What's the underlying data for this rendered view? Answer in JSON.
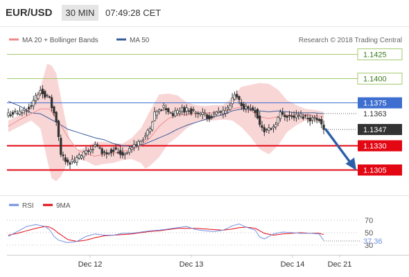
{
  "header": {
    "symbol": "EUR/USD",
    "timeframe": "30 MIN",
    "time": "07:49:28 CET"
  },
  "legend": {
    "ma20_bb": "MA 20 + Bollinger Bands",
    "ma50": "MA 50",
    "credit": "Research © 2018 Trading Central"
  },
  "colors": {
    "bb_fill": "#f9d6d6",
    "ma20": "#f08a8a",
    "ma50": "#3a5d9a",
    "candle": "#333333",
    "resistance": "#a4c96e",
    "pivot": "#3e6fd0",
    "support": "#e30613",
    "current_label": "#333333",
    "arrow": "#2d5fa8",
    "rsi": "#6f8fe0",
    "rsi_ma": "#e30613"
  },
  "price_labels": {
    "last_price": "1.1363",
    "current_price": "1.1347"
  },
  "chart_data": [
    {
      "type": "candlestick",
      "ylim": [
        1.1285,
        1.1445
      ],
      "x_labels": [
        "Dec 12",
        "Dec 13",
        "Dec 14",
        "Dec 21"
      ],
      "levels": [
        {
          "label": "1.1425",
          "value": 1.1425,
          "kind": "resistance"
        },
        {
          "label": "1.1400",
          "value": 1.14,
          "kind": "resistance"
        },
        {
          "label": "1.1375",
          "value": 1.1375,
          "kind": "pivot"
        },
        {
          "label": "1.1330",
          "value": 1.133,
          "kind": "support"
        },
        {
          "label": "1.1305",
          "value": 1.1305,
          "kind": "support"
        }
      ],
      "close_anchors": [
        [
          0,
          1.1363
        ],
        [
          5,
          1.1364
        ],
        [
          10,
          1.1372
        ],
        [
          14,
          1.1388
        ],
        [
          18,
          1.1378
        ],
        [
          21,
          1.1355
        ],
        [
          23,
          1.132
        ],
        [
          27,
          1.1312
        ],
        [
          30,
          1.1316
        ],
        [
          34,
          1.1323
        ],
        [
          38,
          1.133
        ],
        [
          42,
          1.1322
        ],
        [
          46,
          1.1326
        ],
        [
          50,
          1.1321
        ],
        [
          54,
          1.1328
        ],
        [
          58,
          1.1335
        ],
        [
          62,
          1.1346
        ],
        [
          64,
          1.1362
        ],
        [
          68,
          1.137
        ],
        [
          72,
          1.1362
        ],
        [
          76,
          1.1368
        ],
        [
          80,
          1.1366
        ],
        [
          84,
          1.1363
        ],
        [
          88,
          1.136
        ],
        [
          92,
          1.1364
        ],
        [
          96,
          1.1367
        ],
        [
          99,
          1.1382
        ],
        [
          103,
          1.137
        ],
        [
          108,
          1.1367
        ],
        [
          110,
          1.1352
        ],
        [
          112,
          1.1345
        ],
        [
          116,
          1.135
        ],
        [
          119,
          1.1363
        ],
        [
          124,
          1.136
        ],
        [
          128,
          1.1361
        ],
        [
          132,
          1.1358
        ],
        [
          136,
          1.1358
        ],
        [
          138,
          1.1347
        ]
      ],
      "bb_upper_anchors": [
        [
          0,
          1.1356
        ],
        [
          5,
          1.1362
        ],
        [
          10,
          1.1371
        ],
        [
          14,
          1.139
        ],
        [
          17,
          1.1415
        ],
        [
          19,
          1.1413
        ],
        [
          21,
          1.1405
        ],
        [
          23,
          1.138
        ],
        [
          27,
          1.1334
        ],
        [
          30,
          1.1325
        ],
        [
          34,
          1.1328
        ],
        [
          38,
          1.1334
        ],
        [
          42,
          1.1334
        ],
        [
          46,
          1.1332
        ],
        [
          50,
          1.1332
        ],
        [
          54,
          1.1338
        ],
        [
          58,
          1.1348
        ],
        [
          62,
          1.1366
        ],
        [
          66,
          1.1383
        ],
        [
          70,
          1.1384
        ],
        [
          74,
          1.1382
        ],
        [
          78,
          1.1375
        ],
        [
          82,
          1.1372
        ],
        [
          86,
          1.1371
        ],
        [
          90,
          1.1372
        ],
        [
          94,
          1.1372
        ],
        [
          98,
          1.138
        ],
        [
          102,
          1.1391
        ],
        [
          106,
          1.1393
        ],
        [
          110,
          1.1395
        ],
        [
          114,
          1.1394
        ],
        [
          118,
          1.1388
        ],
        [
          122,
          1.1377
        ],
        [
          126,
          1.1372
        ],
        [
          130,
          1.1368
        ],
        [
          134,
          1.1367
        ],
        [
          138,
          1.1365
        ]
      ],
      "ma20_anchors": [
        [
          0,
          1.135
        ],
        [
          5,
          1.1357
        ],
        [
          10,
          1.1363
        ],
        [
          14,
          1.1368
        ],
        [
          18,
          1.1368
        ],
        [
          22,
          1.1355
        ],
        [
          26,
          1.1339
        ],
        [
          30,
          1.1326
        ],
        [
          34,
          1.1321
        ],
        [
          38,
          1.1319
        ],
        [
          42,
          1.1321
        ],
        [
          46,
          1.1322
        ],
        [
          50,
          1.1324
        ],
        [
          54,
          1.1326
        ],
        [
          58,
          1.133
        ],
        [
          62,
          1.1338
        ],
        [
          66,
          1.135
        ],
        [
          70,
          1.1358
        ],
        [
          74,
          1.1362
        ],
        [
          78,
          1.1362
        ],
        [
          82,
          1.1363
        ],
        [
          86,
          1.1364
        ],
        [
          90,
          1.1364
        ],
        [
          94,
          1.1365
        ],
        [
          98,
          1.1368
        ],
        [
          102,
          1.137
        ],
        [
          106,
          1.1366
        ],
        [
          110,
          1.136
        ],
        [
          114,
          1.1358
        ],
        [
          118,
          1.136
        ],
        [
          122,
          1.1361
        ],
        [
          126,
          1.1362
        ],
        [
          130,
          1.1362
        ],
        [
          134,
          1.1361
        ],
        [
          138,
          1.136
        ]
      ],
      "bb_lower_anchors": [
        [
          0,
          1.1344
        ],
        [
          5,
          1.135
        ],
        [
          10,
          1.1356
        ],
        [
          14,
          1.1348
        ],
        [
          17,
          1.1315
        ],
        [
          19,
          1.1296
        ],
        [
          21,
          1.1293
        ],
        [
          23,
          1.1298
        ],
        [
          26,
          1.1312
        ],
        [
          30,
          1.1316
        ],
        [
          34,
          1.1314
        ],
        [
          38,
          1.1309
        ],
        [
          42,
          1.1311
        ],
        [
          46,
          1.1312
        ],
        [
          50,
          1.1315
        ],
        [
          54,
          1.1316
        ],
        [
          58,
          1.1312
        ],
        [
          60,
          1.1306
        ],
        [
          62,
          1.1309
        ],
        [
          66,
          1.1318
        ],
        [
          70,
          1.1332
        ],
        [
          74,
          1.1339
        ],
        [
          78,
          1.1348
        ],
        [
          82,
          1.1354
        ],
        [
          86,
          1.1356
        ],
        [
          90,
          1.1356
        ],
        [
          94,
          1.1357
        ],
        [
          98,
          1.1356
        ],
        [
          102,
          1.1349
        ],
        [
          106,
          1.1339
        ],
        [
          110,
          1.1326
        ],
        [
          114,
          1.1321
        ],
        [
          118,
          1.133
        ],
        [
          122,
          1.1344
        ],
        [
          126,
          1.1351
        ],
        [
          130,
          1.1356
        ],
        [
          134,
          1.1355
        ],
        [
          138,
          1.1354
        ]
      ],
      "ma50_anchors": [
        [
          0,
          1.1376
        ],
        [
          5,
          1.1371
        ],
        [
          10,
          1.1364
        ],
        [
          14,
          1.1363
        ],
        [
          18,
          1.1358
        ],
        [
          22,
          1.1353
        ],
        [
          26,
          1.1347
        ],
        [
          30,
          1.1344
        ],
        [
          34,
          1.1341
        ],
        [
          38,
          1.1338
        ],
        [
          42,
          1.1336
        ],
        [
          46,
          1.1332
        ],
        [
          50,
          1.133
        ],
        [
          54,
          1.1329
        ],
        [
          58,
          1.133
        ],
        [
          62,
          1.1334
        ],
        [
          66,
          1.1338
        ],
        [
          70,
          1.1342
        ],
        [
          74,
          1.1347
        ],
        [
          78,
          1.1351
        ],
        [
          82,
          1.1354
        ],
        [
          86,
          1.1357
        ],
        [
          90,
          1.136
        ],
        [
          94,
          1.1362
        ],
        [
          98,
          1.1366
        ],
        [
          102,
          1.1368
        ],
        [
          106,
          1.1367
        ],
        [
          110,
          1.1366
        ],
        [
          114,
          1.1365
        ],
        [
          118,
          1.1366
        ],
        [
          122,
          1.1365
        ],
        [
          126,
          1.1364
        ],
        [
          130,
          1.1364
        ],
        [
          134,
          1.1364
        ],
        [
          138,
          1.1363
        ]
      ]
    },
    {
      "type": "line",
      "title": "RSI",
      "series_names": [
        "RSI",
        "9MA"
      ],
      "yticks": [
        30,
        50,
        70
      ],
      "ylim": [
        24,
        80
      ],
      "last_value_label": "37.36",
      "rsi_anchors": [
        [
          0,
          44
        ],
        [
          4,
          52
        ],
        [
          8,
          60
        ],
        [
          12,
          63
        ],
        [
          16,
          60
        ],
        [
          18,
          55
        ],
        [
          20,
          44
        ],
        [
          22,
          38
        ],
        [
          26,
          34
        ],
        [
          30,
          36
        ],
        [
          34,
          44
        ],
        [
          38,
          48
        ],
        [
          42,
          46
        ],
        [
          46,
          46
        ],
        [
          50,
          49
        ],
        [
          54,
          49
        ],
        [
          58,
          51
        ],
        [
          62,
          53
        ],
        [
          66,
          54
        ],
        [
          70,
          56
        ],
        [
          74,
          58
        ],
        [
          78,
          60
        ],
        [
          82,
          55
        ],
        [
          86,
          53
        ],
        [
          90,
          52
        ],
        [
          94,
          54
        ],
        [
          98,
          61
        ],
        [
          101,
          64
        ],
        [
          104,
          59
        ],
        [
          108,
          54
        ],
        [
          110,
          43
        ],
        [
          112,
          40
        ],
        [
          116,
          48
        ],
        [
          120,
          51
        ],
        [
          124,
          50
        ],
        [
          128,
          49
        ],
        [
          132,
          49
        ],
        [
          136,
          48
        ],
        [
          138,
          37.36
        ]
      ],
      "ma9_anchors": [
        [
          0,
          46
        ],
        [
          4,
          49
        ],
        [
          8,
          53
        ],
        [
          12,
          57
        ],
        [
          16,
          60
        ],
        [
          18,
          59
        ],
        [
          20,
          55
        ],
        [
          22,
          49
        ],
        [
          26,
          39
        ],
        [
          30,
          36
        ],
        [
          34,
          38
        ],
        [
          38,
          42
        ],
        [
          42,
          45
        ],
        [
          46,
          46
        ],
        [
          50,
          47
        ],
        [
          54,
          48
        ],
        [
          58,
          50
        ],
        [
          62,
          52
        ],
        [
          66,
          53
        ],
        [
          70,
          55
        ],
        [
          74,
          57
        ],
        [
          78,
          57
        ],
        [
          82,
          57
        ],
        [
          86,
          56
        ],
        [
          90,
          55
        ],
        [
          94,
          54
        ],
        [
          98,
          56
        ],
        [
          101,
          58
        ],
        [
          104,
          59
        ],
        [
          108,
          57
        ],
        [
          110,
          53
        ],
        [
          112,
          49
        ],
        [
          116,
          46
        ],
        [
          120,
          48
        ],
        [
          124,
          49
        ],
        [
          128,
          50
        ],
        [
          132,
          49
        ],
        [
          136,
          49
        ],
        [
          138,
          47
        ]
      ]
    }
  ]
}
